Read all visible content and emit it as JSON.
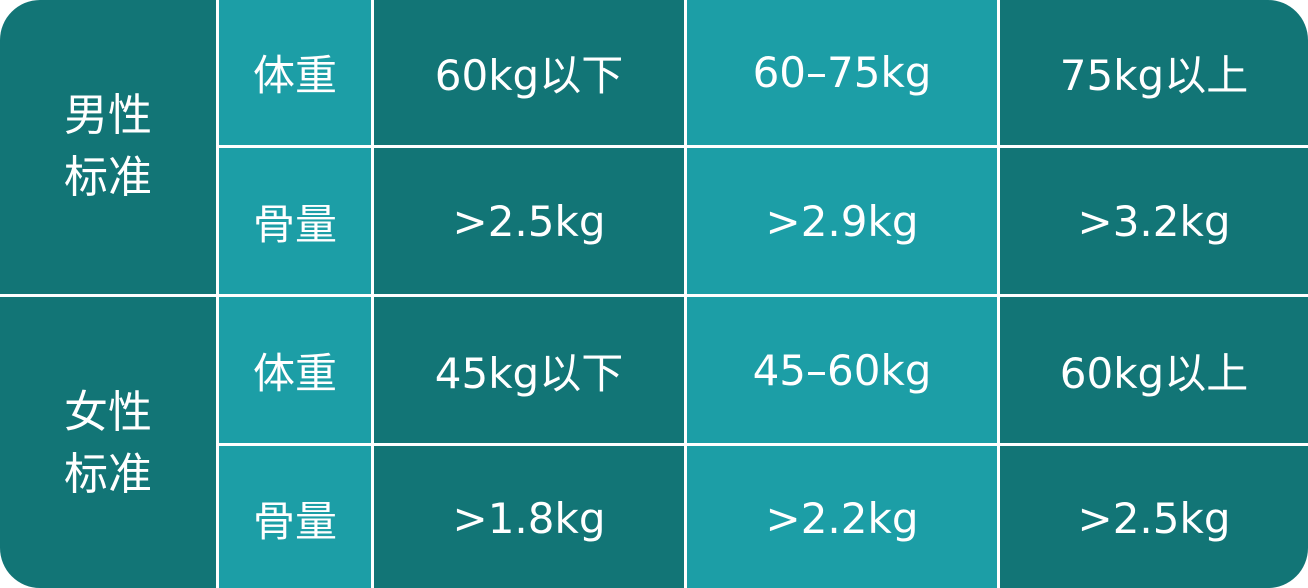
{
  "groups": [
    {
      "label_line1": "男性",
      "label_line2": "标准",
      "rows": [
        {
          "metric": "体重",
          "values": [
            "60kg以下",
            "60–75kg",
            "75kg以上"
          ]
        },
        {
          "metric": "骨量",
          "values": [
            ">2.5kg",
            ">2.9kg",
            ">3.2kg"
          ]
        }
      ]
    },
    {
      "label_line1": "女性",
      "label_line2": "标准",
      "rows": [
        {
          "metric": "体重",
          "values": [
            "45kg以下",
            "45–60kg",
            "60kg以上"
          ]
        },
        {
          "metric": "骨量",
          "values": [
            ">1.8kg",
            ">2.2kg",
            ">2.5kg"
          ]
        }
      ]
    }
  ],
  "colors": {
    "dark": "#127576",
    "light": "#1c9ea6",
    "divider": "#ffffff"
  }
}
